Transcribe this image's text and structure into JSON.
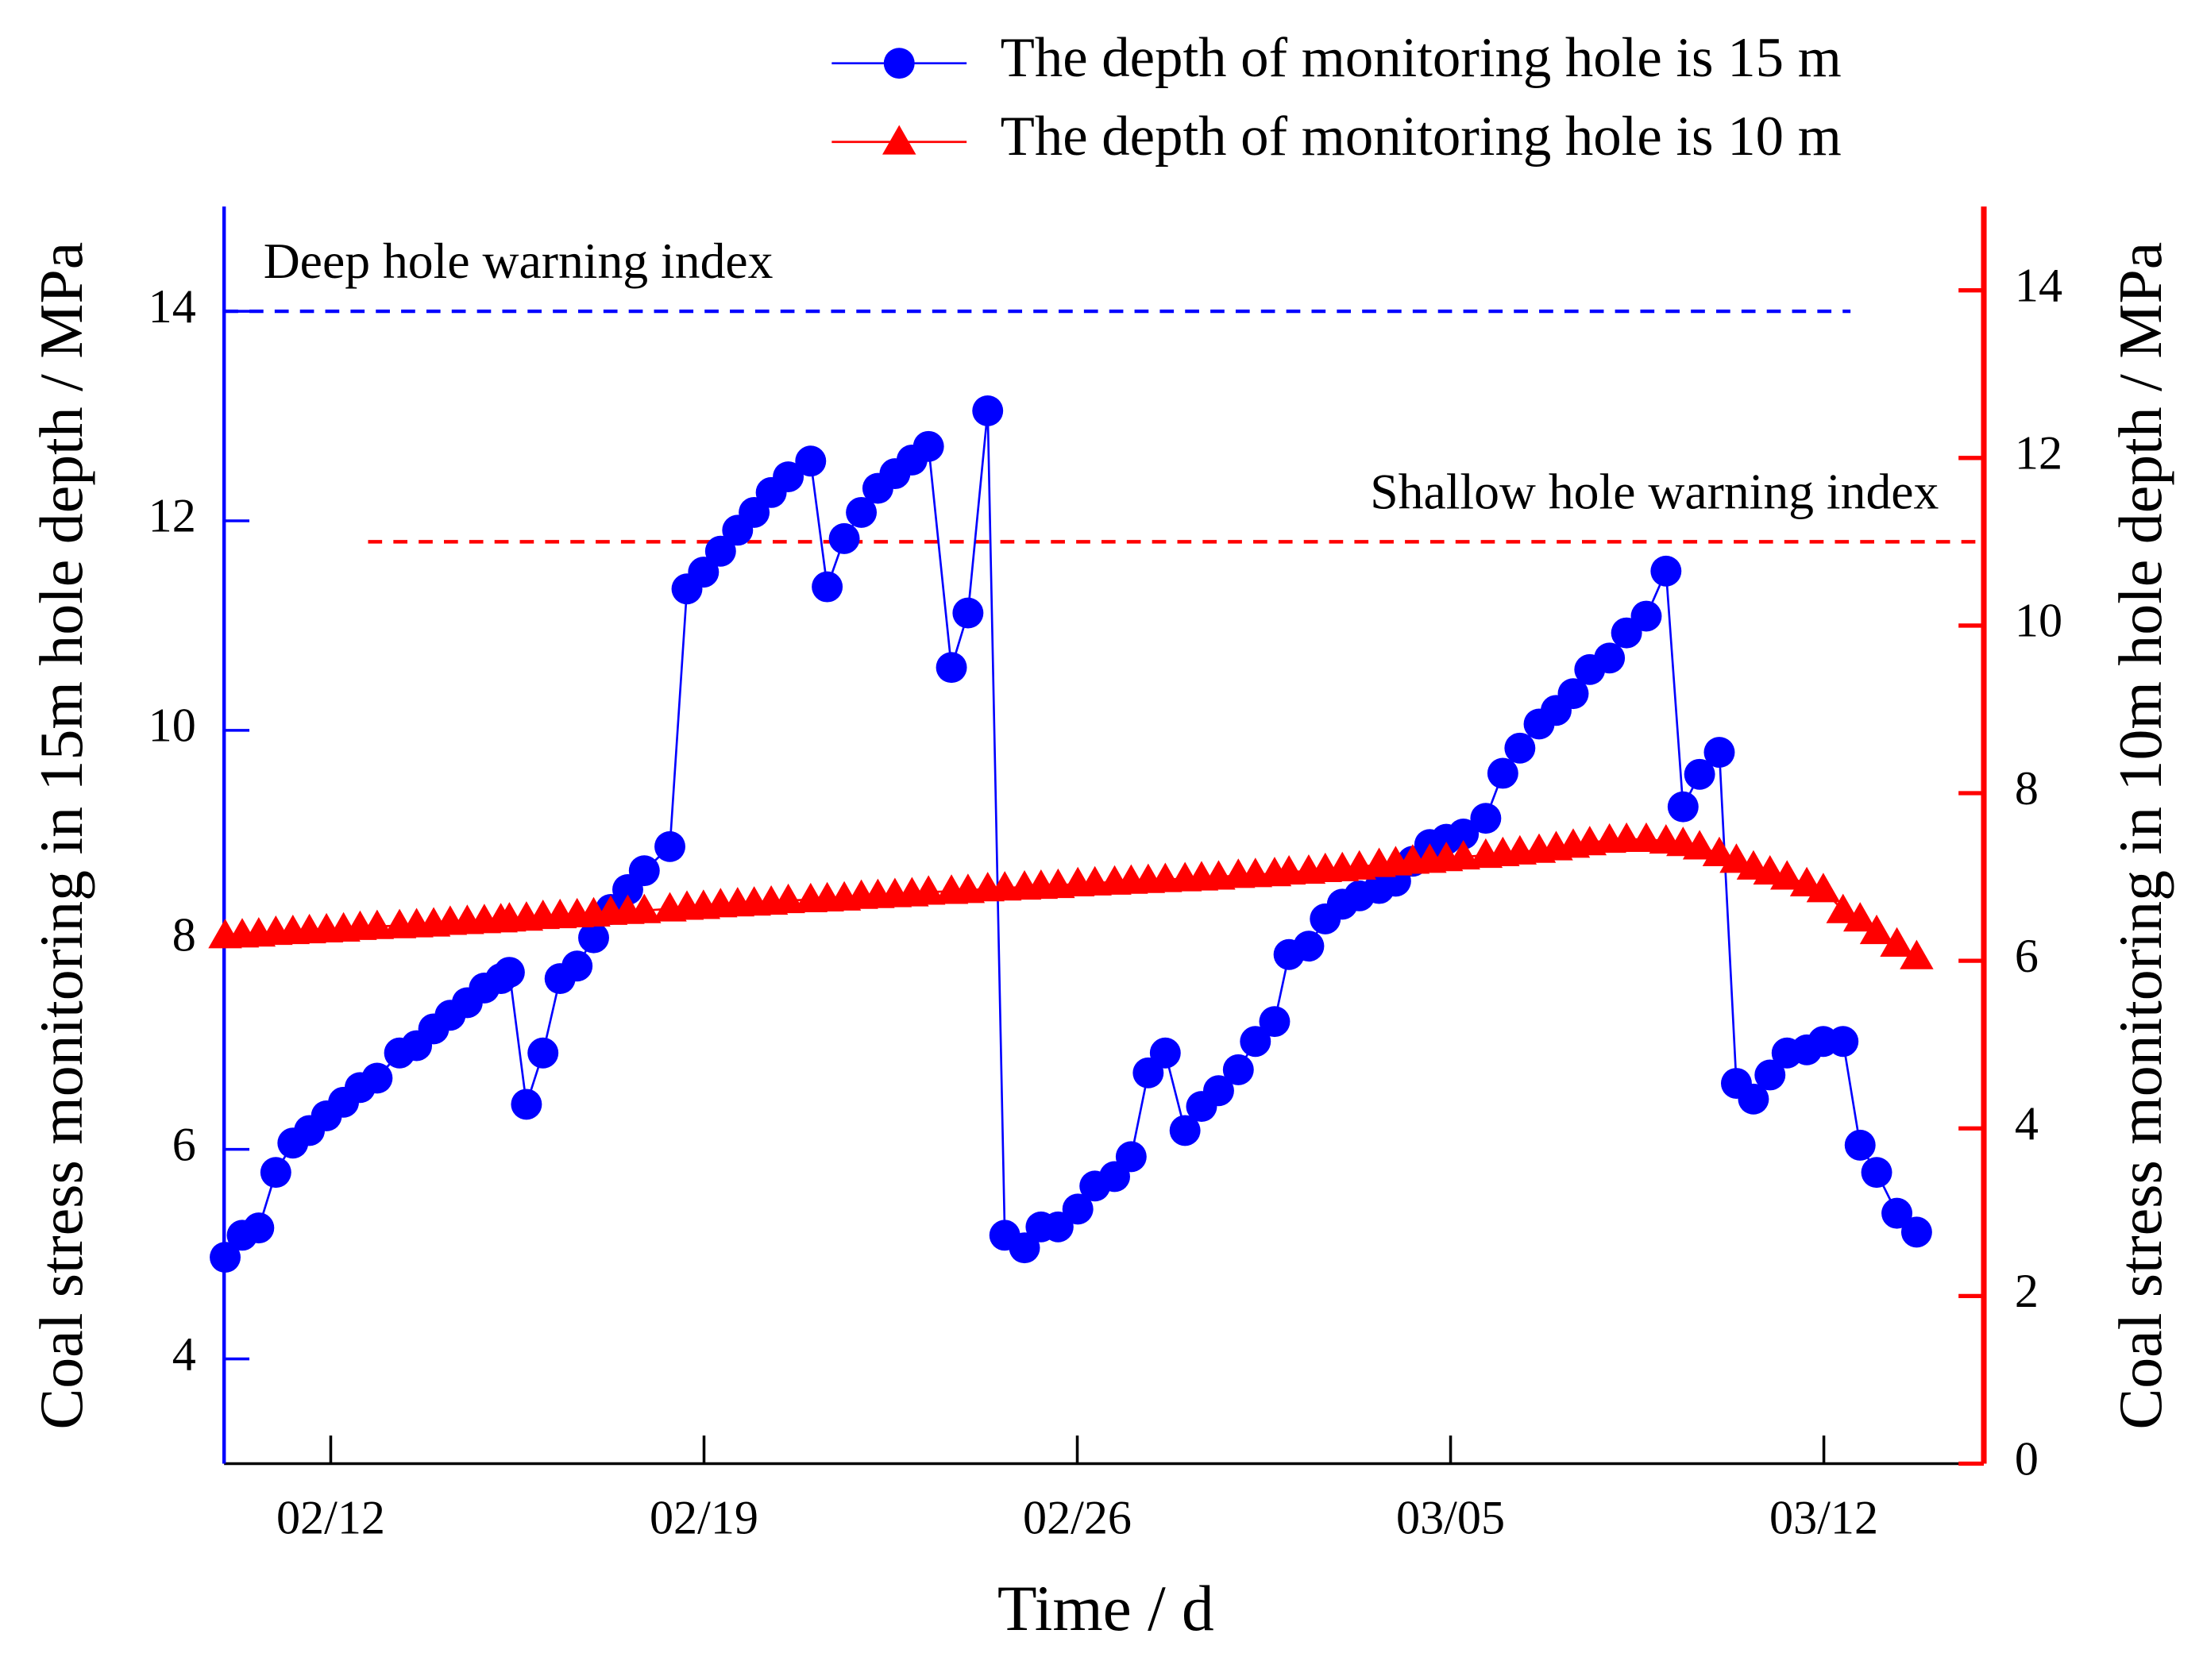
{
  "chart_data": {
    "type": "line",
    "x_label": "Time / d",
    "y_label": "Coal stress monitoring in 15m hole depth / MPa",
    "y2_label": "Coal stress monitoring in 10m hole depth / MPa",
    "legend": "top right",
    "xlim": [
      10,
      43
    ],
    "xticks": [
      {
        "value": 12,
        "label": "02/12"
      },
      {
        "value": 19,
        "label": "02/19"
      },
      {
        "value": 26,
        "label": "02/26"
      },
      {
        "value": 33,
        "label": "03/05"
      },
      {
        "value": 40,
        "label": "03/12"
      }
    ],
    "ylim": [
      3,
      15
    ],
    "yticks": [
      4,
      6,
      8,
      10,
      12,
      14
    ],
    "y2lim": [
      0,
      15
    ],
    "y2ticks": [
      0,
      2,
      4,
      6,
      8,
      10,
      12,
      14
    ],
    "y_color": "#0000ff",
    "y2_color": "#ff0000",
    "x": [
      10.02,
      10.34,
      10.65,
      10.97,
      11.29,
      11.6,
      11.92,
      12.24,
      12.55,
      12.87,
      13.29,
      13.61,
      13.93,
      14.24,
      14.56,
      14.88,
      15.19,
      15.35,
      15.67,
      15.98,
      16.3,
      16.62,
      16.93,
      17.25,
      17.57,
      17.88,
      18.36,
      18.68,
      18.99,
      19.31,
      19.63,
      19.94,
      20.26,
      20.58,
      21.0,
      21.31,
      21.63,
      21.95,
      22.26,
      22.58,
      22.9,
      23.21,
      23.64,
      23.95,
      24.32,
      24.64,
      25.01,
      25.32,
      25.64,
      26.01,
      26.33,
      26.7,
      27.01,
      27.33,
      27.65,
      28.02,
      28.33,
      28.65,
      29.02,
      29.34,
      29.7,
      29.97,
      30.34,
      30.65,
      30.97,
      31.29,
      31.66,
      31.97,
      32.29,
      32.61,
      32.92,
      33.24,
      33.66,
      33.98,
      34.3,
      34.66,
      34.98,
      35.3,
      35.61,
      35.98,
      36.3,
      36.67,
      37.04,
      37.36,
      37.67,
      38.04,
      38.36,
      38.68,
      38.99,
      39.31,
      39.68,
      39.99,
      40.36,
      40.68,
      40.99,
      41.37,
      41.74
    ],
    "series": [
      {
        "name": "The depth of monitoring hole is 15 m",
        "color": "#0000ff",
        "marker": "circle",
        "axis": "y",
        "values": [
          4.97,
          5.18,
          5.25,
          5.78,
          6.06,
          6.18,
          6.32,
          6.45,
          6.59,
          6.68,
          6.92,
          6.99,
          7.15,
          7.28,
          7.4,
          7.54,
          7.63,
          7.69,
          6.43,
          6.92,
          7.63,
          7.75,
          8.02,
          8.29,
          8.48,
          8.66,
          8.89,
          11.35,
          11.51,
          11.71,
          11.91,
          12.08,
          12.27,
          12.42,
          12.57,
          11.37,
          11.83,
          12.08,
          12.31,
          12.45,
          12.58,
          12.71,
          10.6,
          11.12,
          13.05,
          5.18,
          5.06,
          5.26,
          5.26,
          5.43,
          5.65,
          5.74,
          5.93,
          6.73,
          6.92,
          6.18,
          6.41,
          6.56,
          6.76,
          7.03,
          7.22,
          7.86,
          7.94,
          8.2,
          8.34,
          8.42,
          8.49,
          8.56,
          8.75,
          8.91,
          8.96,
          9.01,
          9.16,
          9.59,
          9.83,
          10.06,
          10.19,
          10.35,
          10.58,
          10.69,
          10.93,
          11.09,
          11.52,
          9.27,
          9.58,
          9.79,
          6.63,
          6.48,
          6.71,
          6.92,
          6.95,
          7.03,
          7.03,
          6.04,
          5.78,
          5.39,
          5.21
        ]
      },
      {
        "name": "The depth of monitoring hole is 10 m",
        "color": "#ff0000",
        "marker": "triangle",
        "axis": "y2",
        "values": [
          6.3,
          6.31,
          6.32,
          6.34,
          6.35,
          6.36,
          6.37,
          6.38,
          6.4,
          6.41,
          6.42,
          6.43,
          6.44,
          6.46,
          6.47,
          6.48,
          6.49,
          6.5,
          6.51,
          6.53,
          6.54,
          6.55,
          6.56,
          6.58,
          6.59,
          6.6,
          6.62,
          6.64,
          6.65,
          6.67,
          6.68,
          6.69,
          6.7,
          6.72,
          6.73,
          6.74,
          6.75,
          6.77,
          6.78,
          6.79,
          6.8,
          6.82,
          6.83,
          6.84,
          6.86,
          6.87,
          6.88,
          6.89,
          6.9,
          6.92,
          6.93,
          6.94,
          6.95,
          6.96,
          6.97,
          6.98,
          6.99,
          7.0,
          7.02,
          7.03,
          7.04,
          7.06,
          7.07,
          7.09,
          7.1,
          7.12,
          7.15,
          7.17,
          7.19,
          7.2,
          7.22,
          7.24,
          7.26,
          7.28,
          7.3,
          7.32,
          7.35,
          7.38,
          7.41,
          7.44,
          7.45,
          7.45,
          7.43,
          7.4,
          7.36,
          7.28,
          7.2,
          7.12,
          7.06,
          7.0,
          6.92,
          6.85,
          6.6,
          6.5,
          6.35,
          6.2,
          6.05
        ]
      }
    ],
    "reference_lines": [
      {
        "label": "Deep hole warning index",
        "value": 14,
        "axis": "y",
        "color": "#0000ff",
        "xrange": [
          10,
          40.5
        ]
      },
      {
        "label": "Shallow hole warning index",
        "value": 11,
        "axis": "y2",
        "color": "#ff0000",
        "xrange": [
          12.7,
          43
        ]
      }
    ]
  }
}
